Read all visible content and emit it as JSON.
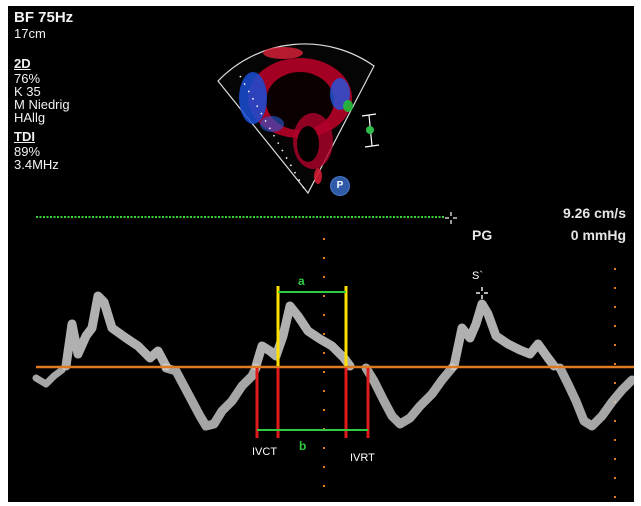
{
  "header": {
    "frame_rate": "BF 75Hz",
    "depth": "17cm"
  },
  "params_2d": {
    "title": "2D",
    "gain": " 76%",
    "k": "K 35",
    "mode": "M Niedrig",
    "harmonic": "HAllg"
  },
  "params_tdi": {
    "title": "TDI",
    "gain": " 89%",
    "freq": "3.4MHz"
  },
  "readouts": {
    "velocity": "9.26 cm/s",
    "pg_label": "PG",
    "pressure": "0 mmHg"
  },
  "badge": {
    "label": "P"
  },
  "annotations": {
    "a_label": "a",
    "b_label": "b",
    "ivct": "IVCT",
    "ivrt": "IVRT",
    "s_prime": "S`"
  },
  "colors": {
    "background": "#000000",
    "baseline": "#e07a1f",
    "marker_yellow": "#ffe000",
    "marker_red": "#e01b1b",
    "bracket_green": "#2ecc40",
    "ecg_green": "#39d139",
    "waveform": "#d9d9d9"
  },
  "icons": [
    "crosshair-icon",
    "probe-badge-icon"
  ]
}
